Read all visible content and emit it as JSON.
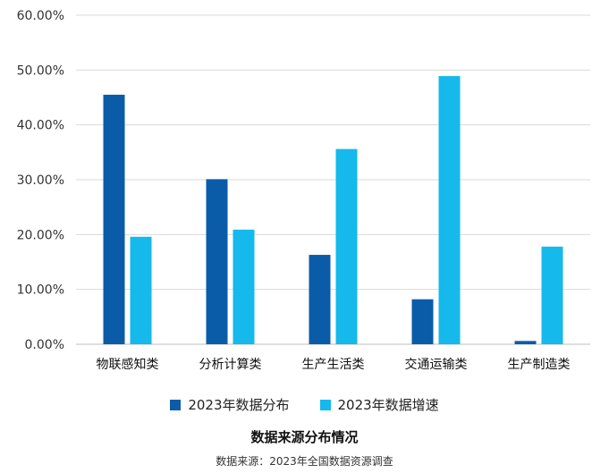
{
  "chart_data": {
    "type": "bar",
    "categories": [
      "物联感知类",
      "分析计算类",
      "生产生活类",
      "交通运输类",
      "生产制造类"
    ],
    "series": [
      {
        "name": "2023年数据分布",
        "values": [
          45.5,
          30.1,
          16.3,
          8.2,
          0.6
        ],
        "color": "#0A5CA8"
      },
      {
        "name": "2023年数据增速",
        "values": [
          19.6,
          20.9,
          35.6,
          48.9,
          17.8
        ],
        "color": "#15B9EB"
      }
    ],
    "yticks": [
      "0.00%",
      "10.00%",
      "20.00%",
      "30.00%",
      "40.00%",
      "50.00%",
      "60.00%"
    ],
    "ylim": [
      0,
      60
    ],
    "grid": true,
    "legend_position": "bottom",
    "title": "数据来源分布情况",
    "source": "数据来源：2023年全国数据资源调查"
  }
}
